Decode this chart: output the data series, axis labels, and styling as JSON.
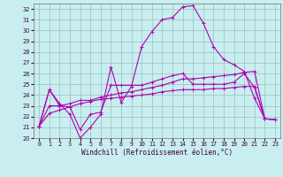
{
  "xlabel": "Windchill (Refroidissement éolien,°C)",
  "bg_color": "#c8eef0",
  "grid_color": "#9bbfc0",
  "line_color": "#b000b0",
  "tick_color": "#400040",
  "xlim": [
    -0.5,
    23.5
  ],
  "ylim": [
    20,
    32.5
  ],
  "yticks": [
    20,
    21,
    22,
    23,
    24,
    25,
    26,
    27,
    28,
    29,
    30,
    31,
    32
  ],
  "xticks": [
    0,
    1,
    2,
    3,
    4,
    5,
    6,
    7,
    8,
    9,
    10,
    11,
    12,
    13,
    14,
    15,
    16,
    17,
    18,
    19,
    20,
    21,
    22,
    23
  ],
  "series": [
    [
      21.1,
      24.5,
      23.2,
      22.2,
      20.0,
      21.0,
      22.2,
      26.6,
      23.3,
      24.8,
      28.5,
      29.9,
      31.0,
      31.2,
      32.2,
      32.3,
      30.7,
      28.5,
      27.3,
      26.8,
      26.2,
      23.7,
      21.8,
      21.7
    ],
    [
      21.1,
      24.5,
      23.0,
      22.9,
      20.8,
      22.2,
      22.4,
      24.9,
      24.9,
      24.9,
      24.9,
      25.2,
      25.5,
      25.8,
      26.0,
      25.0,
      25.0,
      25.0,
      25.0,
      25.2,
      26.0,
      24.7,
      21.8,
      21.7
    ],
    [
      21.1,
      23.0,
      23.0,
      23.2,
      23.5,
      23.5,
      23.8,
      24.0,
      24.2,
      24.3,
      24.5,
      24.7,
      24.9,
      25.2,
      25.5,
      25.5,
      25.6,
      25.7,
      25.8,
      25.9,
      26.1,
      26.2,
      21.8,
      21.7
    ],
    [
      21.1,
      22.3,
      22.6,
      22.9,
      23.2,
      23.4,
      23.6,
      23.7,
      23.8,
      23.9,
      24.0,
      24.1,
      24.3,
      24.4,
      24.5,
      24.5,
      24.5,
      24.6,
      24.6,
      24.7,
      24.8,
      24.8,
      21.8,
      21.7
    ]
  ],
  "xlabel_fontsize": 5.5,
  "tick_fontsize": 4.8,
  "linewidth": 0.8,
  "markersize": 2.5,
  "markeredgewidth": 0.7
}
